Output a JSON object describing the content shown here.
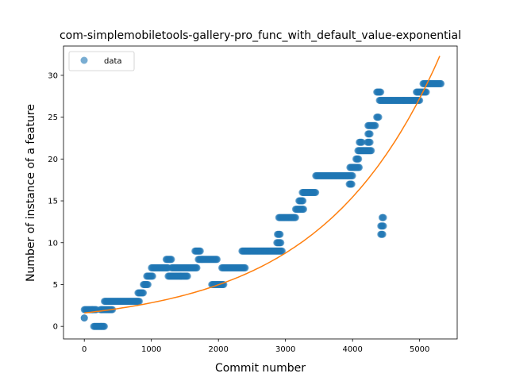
{
  "chart_data": {
    "type": "scatter",
    "title": "com-simplemobiletools-gallery-pro_func_with_default_value-exponential",
    "xlabel": "Commit number",
    "ylabel": "Number of instance of a feature",
    "xlim": [
      -310,
      5560
    ],
    "ylim": [
      -1.5,
      33.5
    ],
    "xticks": [
      0,
      1000,
      2000,
      3000,
      4000,
      5000
    ],
    "yticks": [
      0,
      5,
      10,
      15,
      20,
      25,
      30
    ],
    "grid": false,
    "legend": {
      "position": "top-left",
      "entries": [
        "data"
      ]
    },
    "colors": {
      "data": "#1f77b4",
      "fit": "#ff7f0e"
    },
    "series": [
      {
        "name": "data",
        "kind": "scatter",
        "segments": [
          [
            0,
            120,
            2
          ],
          [
            0,
            0,
            1
          ],
          [
            120,
            180,
            2
          ],
          [
            140,
            300,
            0
          ],
          [
            240,
            420,
            2
          ],
          [
            300,
            820,
            3
          ],
          [
            800,
            880,
            4
          ],
          [
            880,
            950,
            5
          ],
          [
            930,
            1020,
            6
          ],
          [
            1000,
            1250,
            7
          ],
          [
            1220,
            1300,
            8
          ],
          [
            1250,
            1440,
            6
          ],
          [
            1300,
            1680,
            7
          ],
          [
            1440,
            1540,
            6
          ],
          [
            1650,
            1730,
            9
          ],
          [
            1700,
            1980,
            8
          ],
          [
            1900,
            2080,
            5
          ],
          [
            2050,
            2400,
            7
          ],
          [
            2350,
            2950,
            9
          ],
          [
            2870,
            2930,
            10
          ],
          [
            2880,
            2920,
            11
          ],
          [
            2900,
            3150,
            13
          ],
          [
            3150,
            3270,
            14
          ],
          [
            3200,
            3260,
            15
          ],
          [
            3250,
            3450,
            16
          ],
          [
            3450,
            4000,
            18
          ],
          [
            3950,
            3990,
            17
          ],
          [
            3960,
            4100,
            19
          ],
          [
            4050,
            4090,
            20
          ],
          [
            4080,
            4280,
            21
          ],
          [
            4100,
            4140,
            22
          ],
          [
            4220,
            4260,
            22
          ],
          [
            4230,
            4260,
            23
          ],
          [
            4230,
            4340,
            24
          ],
          [
            4360,
            4390,
            25
          ],
          [
            4360,
            4420,
            28
          ],
          [
            4400,
            5000,
            27
          ],
          [
            4420,
            4450,
            11
          ],
          [
            4420,
            4460,
            12
          ],
          [
            4440,
            4460,
            13
          ],
          [
            4950,
            5100,
            28
          ],
          [
            5050,
            5320,
            29
          ]
        ]
      },
      {
        "name": "fit",
        "kind": "line",
        "a": 1.6,
        "b": 0.000567,
        "x_range": [
          0,
          5300
        ]
      }
    ]
  }
}
